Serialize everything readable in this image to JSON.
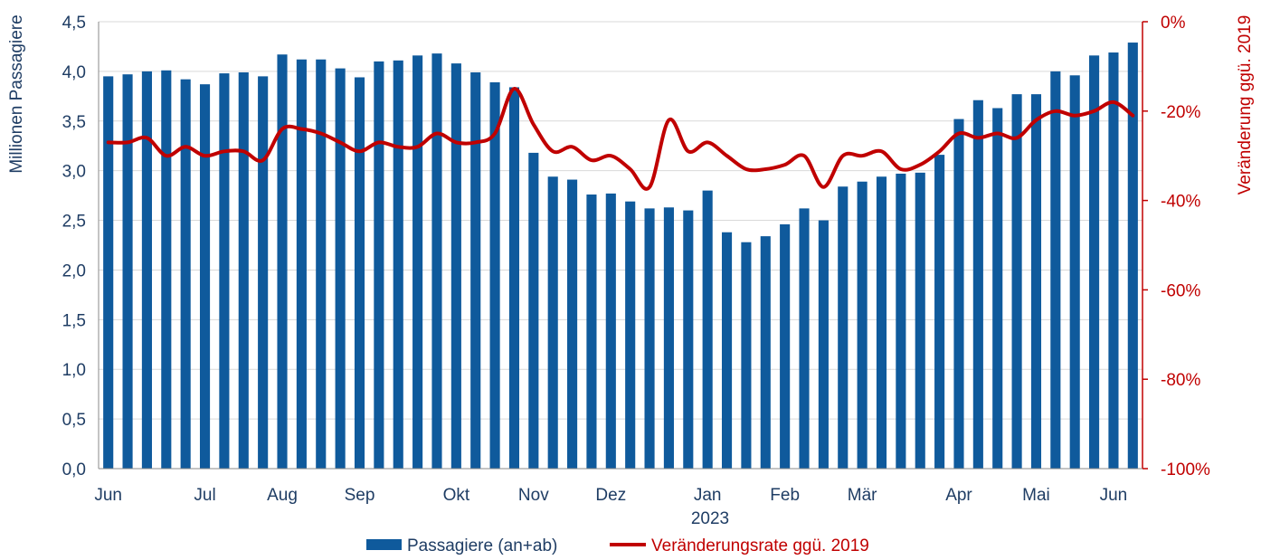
{
  "chart_data": {
    "type": "bar+line",
    "left_axis": {
      "title": "Millionen Passagiere",
      "ylim": [
        0,
        4.5
      ],
      "ticks": [
        "0,0",
        "0,5",
        "1,0",
        "1,5",
        "2,0",
        "2,5",
        "3,0",
        "3,5",
        "4,0",
        "4,5"
      ]
    },
    "right_axis": {
      "title": "Veränderung ggü. 2019",
      "ylim": [
        -100,
        0
      ],
      "ticks": [
        "-100%",
        "-80%",
        "-60%",
        "-40%",
        "-20%",
        "0%"
      ]
    },
    "x_month_labels": [
      "Jun",
      "Jul",
      "Aug",
      "Sep",
      "Okt",
      "Nov",
      "Dez",
      "Jan",
      "Feb",
      "Mär",
      "Apr",
      "Mai",
      "Jun"
    ],
    "x_month_label_weeks": [
      0,
      5,
      9,
      13,
      18,
      22,
      26,
      31,
      35,
      39,
      44,
      48,
      52
    ],
    "year_label": "2023",
    "series": [
      {
        "name": "Passagiere (an+ab)",
        "type": "bar",
        "color": "#0f5a9c",
        "values": [
          3.95,
          3.97,
          4.0,
          4.01,
          3.92,
          3.87,
          3.98,
          3.99,
          3.95,
          4.17,
          4.12,
          4.12,
          4.03,
          3.94,
          4.1,
          4.11,
          4.16,
          4.18,
          4.08,
          3.99,
          3.89,
          3.84,
          3.18,
          2.94,
          2.91,
          2.76,
          2.77,
          2.69,
          2.62,
          2.63,
          2.6,
          2.8,
          2.38,
          2.28,
          2.34,
          2.46,
          2.62,
          2.5,
          2.84,
          2.89,
          2.94,
          2.97,
          2.98,
          3.16,
          3.52,
          3.71,
          3.63,
          3.77,
          3.77,
          4.0,
          3.96,
          4.16,
          4.19,
          4.29
        ]
      },
      {
        "name": "Veränderungsrate ggü. 2019",
        "type": "line",
        "color": "#c00000",
        "values": [
          -27,
          -27,
          -26,
          -30,
          -28,
          -30,
          -29,
          -29,
          -31,
          -24,
          -24,
          -25,
          -27,
          -29,
          -27,
          -28,
          -28,
          -25,
          -27,
          -27,
          -25,
          -15,
          -23,
          -29,
          -28,
          -31,
          -30,
          -33,
          -37,
          -22,
          -29,
          -27,
          -30,
          -33,
          -33,
          -32,
          -30,
          -37,
          -30,
          -30,
          -29,
          -33,
          -32,
          -29,
          -25,
          -26,
          -25,
          -26,
          -22,
          -20,
          -21,
          -20,
          -18,
          -21
        ]
      }
    ],
    "legend": {
      "bar_label": "Passagiere (an+ab)",
      "line_label": "Veränderungsrate ggü. 2019",
      "position": "bottom"
    }
  }
}
